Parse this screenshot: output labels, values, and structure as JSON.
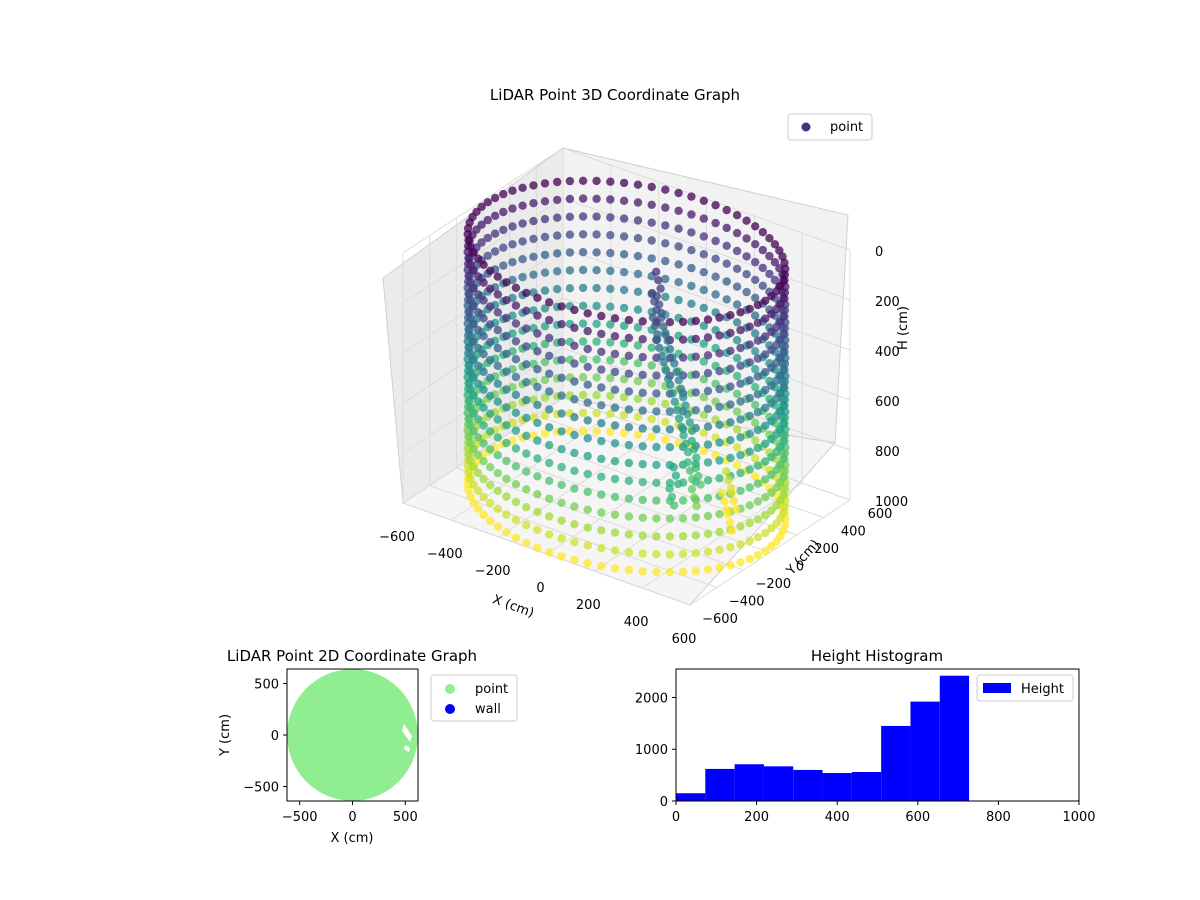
{
  "chart_data": [
    {
      "type": "scatter",
      "title": "LiDAR Point 3D Coordinate Graph",
      "xlabel": "X (cm)",
      "ylabel": "Y (cm)",
      "zlabel": "H (cm)",
      "xlim": [
        -600,
        600
      ],
      "ylim": [
        -600,
        600
      ],
      "zlim": [
        1000,
        0
      ],
      "xticks": [
        "−600",
        "−400",
        "−200",
        "0",
        "200",
        "400",
        "600"
      ],
      "yticks": [
        "−600",
        "−400",
        "−200",
        "0",
        "200",
        "400",
        "600"
      ],
      "zticks": [
        "0",
        "200",
        "400",
        "600",
        "800",
        "1000"
      ],
      "colormap": "viridis",
      "legend": {
        "label": "point",
        "placement": "top-right"
      },
      "shape": "cylinder",
      "cylinder_radius": 580,
      "series": [
        {
          "name": "point",
          "description_points": [
            {
              "x": 40,
              "y": 150,
              "h": 120
            },
            {
              "x": 60,
              "y": 120,
              "h": 200
            },
            {
              "x": 100,
              "y": 80,
              "h": 260
            },
            {
              "x": 150,
              "y": 40,
              "h": 320
            },
            {
              "x": 200,
              "y": 0,
              "h": 380
            },
            {
              "x": 250,
              "y": -40,
              "h": 450
            },
            {
              "x": 300,
              "y": -80,
              "h": 520
            },
            {
              "x": 340,
              "y": -120,
              "h": 600
            },
            {
              "x": 380,
              "y": -160,
              "h": 680
            },
            {
              "x": 250,
              "y": 300,
              "h": 900
            },
            {
              "x": 300,
              "y": 250,
              "h": 950
            },
            {
              "x": 420,
              "y": -400,
              "h": 580
            }
          ]
        }
      ]
    },
    {
      "type": "scatter",
      "title": "LiDAR Point 2D Coordinate Graph",
      "xlabel": "X (cm)",
      "ylabel": "Y (cm)",
      "xlim": [
        -620,
        620
      ],
      "ylim": [
        -640,
        640
      ],
      "xticks": [
        -500,
        0,
        500
      ],
      "yticks": [
        -500,
        0,
        500
      ],
      "legend": {
        "placement": "outside-right"
      },
      "series": [
        {
          "name": "point",
          "color": "#90ee90",
          "shape": "disk",
          "radius": 600
        },
        {
          "name": "wall",
          "color": "#0000ff",
          "values": []
        }
      ]
    },
    {
      "type": "bar",
      "title": "Height Histogram",
      "xlabel": "",
      "ylabel": "",
      "xlim": [
        0,
        1000
      ],
      "ylim": [
        0,
        2550
      ],
      "xticks": [
        0,
        200,
        400,
        600,
        800,
        1000
      ],
      "yticks": [
        0,
        1000,
        2000
      ],
      "legend": {
        "placement": "top-right"
      },
      "series": [
        {
          "name": "Height",
          "color": "#0000ff",
          "bin_edges": [
            0,
            72.7,
            145.5,
            218.2,
            290.9,
            363.6,
            436.4,
            509.1,
            581.8,
            654.5,
            727.3
          ],
          "values": [
            150,
            620,
            710,
            670,
            600,
            540,
            560,
            1450,
            1920,
            2420
          ]
        }
      ]
    }
  ]
}
